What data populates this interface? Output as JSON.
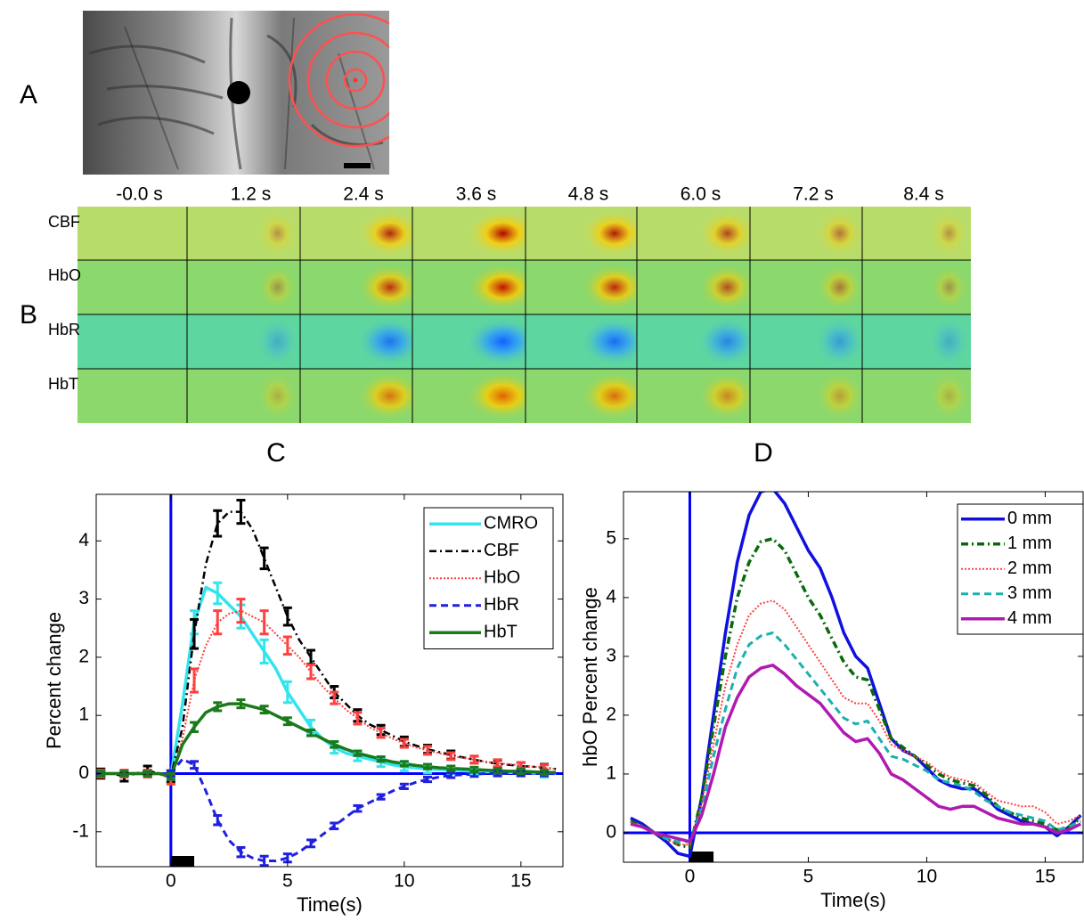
{
  "panels": {
    "a": "A",
    "b": "B",
    "c": "C",
    "d": "D"
  },
  "image_grid": {
    "times": [
      "-0.0 s",
      "1.2 s",
      "2.4 s",
      "3.6 s",
      "4.8 s",
      "6.0 s",
      "7.2 s",
      "8.4 s"
    ],
    "rows": [
      "CBF",
      "HbO",
      "HbR",
      "HbT"
    ]
  },
  "chart_data": [
    {
      "type": "line",
      "xlabel": "Time(s)",
      "ylabel": "Percent change",
      "x": [
        -3,
        -2.5,
        -2,
        -1.5,
        -1,
        -0.5,
        0,
        0.5,
        1,
        1.5,
        2,
        2.5,
        3,
        3.5,
        4,
        4.5,
        5,
        5.5,
        6,
        6.5,
        7,
        7.5,
        8,
        8.5,
        9,
        9.5,
        10,
        10.5,
        11,
        11.5,
        12,
        12.5,
        13,
        13.5,
        14,
        14.5,
        15,
        15.5,
        16,
        16.5
      ],
      "series": [
        {
          "name": "CMRO",
          "color": "#33e4ee",
          "dash": "none",
          "width": 3.5,
          "values": [
            0,
            0,
            0,
            0,
            0,
            0,
            -0.05,
            1.2,
            2.6,
            3.2,
            3.1,
            2.9,
            2.7,
            2.4,
            2.1,
            1.8,
            1.4,
            1.1,
            0.8,
            0.6,
            0.45,
            0.35,
            0.3,
            0.25,
            0.2,
            0.15,
            0.12,
            0.1,
            0.08,
            0.07,
            0.06,
            0.05,
            0.04,
            0.03,
            0.03,
            0.02,
            0.02,
            0.01,
            0,
            0
          ],
          "errors": [
            0.06,
            null,
            0.06,
            null,
            0.06,
            null,
            0.08,
            null,
            0.2,
            null,
            0.18,
            null,
            0.2,
            null,
            0.2,
            null,
            0.18,
            null,
            0.12,
            null,
            0.1,
            null,
            0.08,
            null,
            0.08,
            null,
            0.07,
            null,
            0.07,
            null,
            0.06,
            null,
            0.06,
            null,
            0.06,
            null,
            0.06,
            null,
            0.06,
            null
          ]
        },
        {
          "name": "CBF",
          "color": "#000000",
          "dash": "8 4 2 4",
          "width": 2.5,
          "values": [
            0,
            0,
            -0.05,
            0,
            0.05,
            0,
            -0.05,
            0.8,
            2.4,
            3.6,
            4.3,
            4.5,
            4.5,
            4.2,
            3.7,
            3.2,
            2.7,
            2.3,
            2.0,
            1.7,
            1.4,
            1.2,
            1.0,
            0.85,
            0.75,
            0.65,
            0.55,
            0.48,
            0.42,
            0.37,
            0.32,
            0.28,
            0.24,
            0.2,
            0.17,
            0.15,
            0.13,
            0.12,
            0.1,
            0.08
          ],
          "errors": [
            0.08,
            null,
            0.08,
            null,
            0.08,
            null,
            0.1,
            null,
            0.25,
            null,
            0.22,
            null,
            0.2,
            null,
            0.18,
            null,
            0.15,
            null,
            0.12,
            null,
            0.1,
            null,
            0.1,
            null,
            0.08,
            null,
            0.08,
            null,
            0.07,
            null,
            0.07,
            null,
            0.06,
            null,
            0.06,
            null,
            0.06,
            null,
            0.06,
            null
          ]
        },
        {
          "name": "HbO",
          "color": "#ff4040",
          "dash": "2 2",
          "width": 2,
          "values": [
            0,
            0,
            0,
            0,
            0,
            0,
            -0.1,
            0.6,
            1.6,
            2.2,
            2.6,
            2.75,
            2.8,
            2.7,
            2.6,
            2.4,
            2.2,
            2.0,
            1.75,
            1.5,
            1.3,
            1.1,
            0.95,
            0.8,
            0.7,
            0.6,
            0.52,
            0.45,
            0.4,
            0.35,
            0.3,
            0.27,
            0.24,
            0.2,
            0.18,
            0.16,
            0.14,
            0.12,
            0.1,
            0.08
          ],
          "errors": [
            0.06,
            null,
            0.06,
            null,
            0.06,
            null,
            0.08,
            null,
            0.2,
            null,
            0.2,
            null,
            0.2,
            null,
            0.2,
            null,
            0.15,
            null,
            0.12,
            null,
            0.1,
            null,
            0.1,
            null,
            0.08,
            null,
            0.07,
            null,
            0.07,
            null,
            0.06,
            null,
            0.06,
            null,
            0.06,
            null,
            0.05,
            null,
            0.05,
            null
          ]
        },
        {
          "name": "HbR",
          "color": "#2020e0",
          "dash": "8 5",
          "width": 3,
          "values": [
            0,
            0,
            0,
            0,
            0,
            0,
            0,
            0.25,
            0.15,
            -0.3,
            -0.8,
            -1.15,
            -1.35,
            -1.45,
            -1.5,
            -1.5,
            -1.45,
            -1.35,
            -1.2,
            -1.05,
            -0.9,
            -0.75,
            -0.6,
            -0.5,
            -0.4,
            -0.3,
            -0.22,
            -0.15,
            -0.1,
            -0.06,
            -0.03,
            -0.02,
            -0.01,
            0,
            0,
            0,
            0,
            0,
            0,
            0
          ],
          "errors": [
            0.04,
            null,
            0.04,
            null,
            0.04,
            null,
            0.05,
            null,
            0.06,
            null,
            0.08,
            null,
            0.08,
            null,
            0.08,
            null,
            0.07,
            null,
            0.06,
            null,
            0.05,
            null,
            0.05,
            null,
            0.04,
            null,
            0.04,
            null,
            0.04,
            null,
            0.04,
            null,
            0.04,
            null,
            0.04,
            null,
            0.04,
            null,
            0.04,
            null
          ]
        },
        {
          "name": "HbT",
          "color": "#1a7a1a",
          "dash": "none",
          "width": 3.5,
          "values": [
            0,
            0,
            0,
            0,
            0,
            0,
            -0.05,
            0.5,
            0.8,
            1.05,
            1.15,
            1.2,
            1.2,
            1.15,
            1.1,
            1.0,
            0.9,
            0.8,
            0.7,
            0.6,
            0.5,
            0.42,
            0.35,
            0.3,
            0.25,
            0.2,
            0.17,
            0.14,
            0.12,
            0.1,
            0.09,
            0.08,
            0.07,
            0.06,
            0.05,
            0.04,
            0.04,
            0.03,
            0.02,
            0.02
          ],
          "errors": [
            0.04,
            null,
            0.04,
            null,
            0.04,
            null,
            0.05,
            null,
            0.08,
            null,
            0.07,
            null,
            0.07,
            null,
            0.06,
            null,
            0.06,
            null,
            0.05,
            null,
            0.05,
            null,
            0.04,
            null,
            0.04,
            null,
            0.04,
            null,
            0.04,
            null,
            0.04,
            null,
            0.04,
            null,
            0.04,
            null,
            0.04,
            null,
            0.04,
            null
          ]
        }
      ],
      "xlim": [
        -3.2,
        16.8
      ],
      "ylim": [
        -1.6,
        4.8
      ],
      "xticks": [
        0,
        5,
        10,
        15
      ],
      "yticks": [
        -1,
        0,
        1,
        2,
        3,
        4
      ],
      "legend": "upper right",
      "stimulus": [
        0,
        1
      ],
      "zero_lines": true
    },
    {
      "type": "line",
      "xlabel": "Time(s)",
      "ylabel": "hbO Percent change",
      "x": [
        -2.5,
        -2,
        -1.5,
        -1,
        -0.5,
        0,
        0.5,
        1,
        1.5,
        2,
        2.5,
        3,
        3.5,
        4,
        4.5,
        5,
        5.5,
        6,
        6.5,
        7,
        7.5,
        8,
        8.5,
        9,
        9.5,
        10,
        10.5,
        11,
        11.5,
        12,
        12.5,
        13,
        13.5,
        14,
        14.5,
        15,
        15.5,
        16,
        16.5
      ],
      "series": [
        {
          "name": "0 mm",
          "color": "#1010e0",
          "dash": "none",
          "width": 3.5,
          "values": [
            0.25,
            0.15,
            0,
            -0.15,
            -0.35,
            -0.4,
            0.6,
            2.0,
            3.4,
            4.6,
            5.4,
            5.8,
            5.85,
            5.6,
            5.2,
            4.8,
            4.5,
            4.0,
            3.4,
            3.0,
            2.8,
            2.2,
            1.6,
            1.4,
            1.3,
            1.1,
            0.9,
            0.8,
            0.75,
            0.75,
            0.6,
            0.4,
            0.3,
            0.2,
            0.15,
            0.1,
            -0.05,
            0.1,
            0.3
          ]
        },
        {
          "name": "1 mm",
          "color": "#0a6a0a",
          "dash": "8 4 2 4",
          "width": 3.5,
          "values": [
            0.2,
            0.12,
            0,
            -0.1,
            -0.2,
            -0.25,
            0.6,
            1.8,
            3.0,
            4.0,
            4.6,
            4.95,
            5.0,
            4.8,
            4.4,
            4.0,
            3.7,
            3.3,
            2.9,
            2.65,
            2.6,
            2.1,
            1.6,
            1.45,
            1.3,
            1.15,
            1.0,
            0.9,
            0.85,
            0.8,
            0.65,
            0.45,
            0.35,
            0.25,
            0.2,
            0.15,
            0.05,
            0.1,
            0.25
          ]
        },
        {
          "name": "2 mm",
          "color": "#ff4040",
          "dash": "2 2",
          "width": 2,
          "values": [
            0.18,
            0.1,
            0,
            -0.1,
            -0.2,
            -0.2,
            0.5,
            1.5,
            2.5,
            3.2,
            3.7,
            3.9,
            3.95,
            3.8,
            3.5,
            3.2,
            2.9,
            2.6,
            2.3,
            2.2,
            2.2,
            1.9,
            1.5,
            1.4,
            1.3,
            1.2,
            1.05,
            0.95,
            0.9,
            0.85,
            0.7,
            0.55,
            0.5,
            0.45,
            0.45,
            0.35,
            0.15,
            0.2,
            0.3
          ]
        },
        {
          "name": "3 mm",
          "color": "#1ab0b0",
          "dash": "8 5",
          "width": 3,
          "values": [
            0.15,
            0.1,
            0,
            -0.1,
            -0.15,
            -0.15,
            0.4,
            1.3,
            2.1,
            2.8,
            3.2,
            3.35,
            3.4,
            3.2,
            2.95,
            2.7,
            2.45,
            2.2,
            1.95,
            1.85,
            1.9,
            1.6,
            1.3,
            1.25,
            1.15,
            1.05,
            0.9,
            0.85,
            0.8,
            0.7,
            0.55,
            0.45,
            0.35,
            0.3,
            0.25,
            0.2,
            0.05,
            0.1,
            0.2
          ]
        },
        {
          "name": "4 mm",
          "color": "#b01ab0",
          "dash": "none",
          "width": 3.5,
          "values": [
            0.15,
            0.1,
            0,
            -0.05,
            -0.1,
            -0.15,
            0.3,
            1.0,
            1.8,
            2.3,
            2.65,
            2.8,
            2.85,
            2.7,
            2.5,
            2.35,
            2.2,
            1.95,
            1.7,
            1.55,
            1.6,
            1.35,
            1.0,
            0.9,
            0.75,
            0.6,
            0.45,
            0.4,
            0.45,
            0.45,
            0.35,
            0.25,
            0.2,
            0.15,
            0.15,
            0.1,
            0,
            0.05,
            0.15
          ]
        }
      ],
      "xlim": [
        -2.8,
        16.6
      ],
      "ylim": [
        -0.5,
        5.8
      ],
      "xticks": [
        0,
        5,
        10,
        15
      ],
      "yticks": [
        0,
        1,
        2,
        3,
        4,
        5
      ],
      "legend": "upper right",
      "stimulus": [
        0,
        1
      ],
      "zero_lines": true
    }
  ]
}
